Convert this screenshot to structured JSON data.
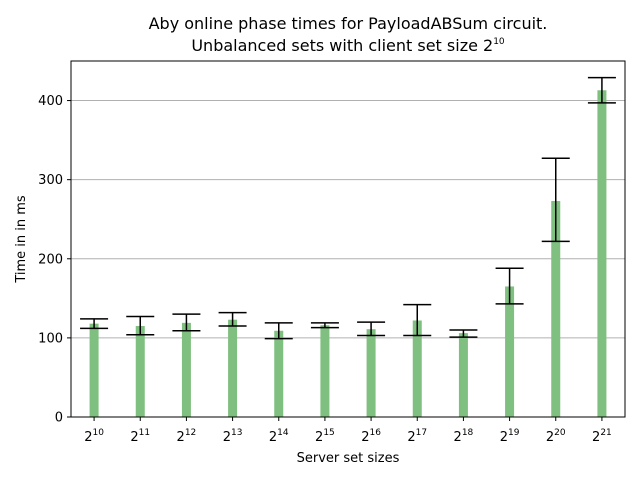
{
  "chart_data": {
    "type": "bar",
    "title_line1": "Aby online phase times for PayloadABSum circuit.",
    "title_line2_base": "Unbalanced sets with client set size 2",
    "title_line2_exp": "10",
    "xlabel": "Server set sizes",
    "ylabel": "Time in in ms",
    "ylim": [
      0,
      450
    ],
    "yticks": [
      0,
      100,
      200,
      300,
      400
    ],
    "grid": "y",
    "categories": [
      {
        "base": "2",
        "exp": "10"
      },
      {
        "base": "2",
        "exp": "11"
      },
      {
        "base": "2",
        "exp": "12"
      },
      {
        "base": "2",
        "exp": "13"
      },
      {
        "base": "2",
        "exp": "14"
      },
      {
        "base": "2",
        "exp": "15"
      },
      {
        "base": "2",
        "exp": "16"
      },
      {
        "base": "2",
        "exp": "17"
      },
      {
        "base": "2",
        "exp": "18"
      },
      {
        "base": "2",
        "exp": "19"
      },
      {
        "base": "2",
        "exp": "20"
      },
      {
        "base": "2",
        "exp": "21"
      }
    ],
    "values": [
      118,
      115,
      119,
      123,
      109,
      116,
      111,
      122,
      106,
      165,
      273,
      413
    ],
    "err_low": [
      112,
      104,
      109,
      115,
      99,
      113,
      103,
      103,
      101,
      143,
      222,
      397
    ],
    "err_high": [
      124,
      127,
      130,
      132,
      119,
      119,
      120,
      142,
      110,
      188,
      327,
      429
    ],
    "colors": {
      "bar": "#7fbf7f",
      "error": "#000000",
      "grid": "#b0b0b0"
    }
  }
}
